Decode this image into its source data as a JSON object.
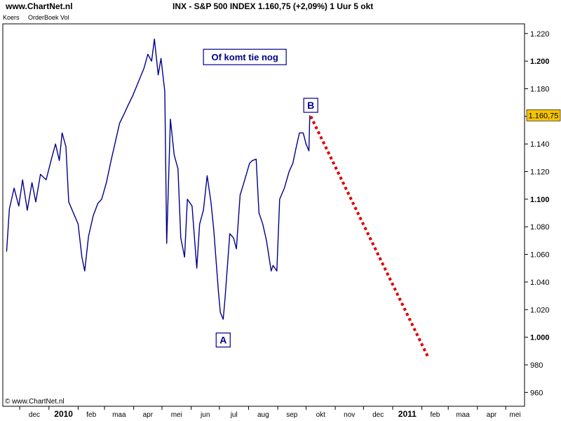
{
  "header": {
    "site": "www.ChartNet.nl",
    "title": "INX - S&P 500 INDEX   1.160,75 (+2,09%)    1 Uur  5 okt"
  },
  "tabs": [
    "Koers",
    "OrderBoek Vol"
  ],
  "watermark": "© www.ChartNet.nl",
  "colors": {
    "price_line": "#00008b",
    "projection": "#dd0000",
    "last_price_bg": "#f5c400",
    "label_border": "#00008b"
  },
  "chart_data": {
    "type": "line",
    "title": "",
    "xlabel": "",
    "ylabel": "",
    "x_tick_labels": [
      "dec",
      "2010",
      "feb",
      "maa",
      "apr",
      "mei",
      "jun",
      "jul",
      "aug",
      "sep",
      "okt",
      "nov",
      "dec",
      "2011",
      "feb",
      "maa",
      "apr",
      "mei"
    ],
    "x_bold_ticks": [
      "2010",
      "2011"
    ],
    "y_tick_labels": [
      "1.220",
      "1.200",
      "1.180",
      "1.160",
      "1.140",
      "1.120",
      "1.100",
      "1.080",
      "1.060",
      "1.040",
      "1.020",
      "1.000",
      "980",
      "960"
    ],
    "y_bold_ticks": [
      "1.200",
      "1.100",
      "1.000"
    ],
    "ylim": [
      950,
      1227
    ],
    "grid": false,
    "last_price_label": "1.160,75",
    "series": [
      {
        "role": "price",
        "points": [
          [
            "2009-11-17",
            1062
          ],
          [
            "2009-11-20",
            1093
          ],
          [
            "2009-11-25",
            1108
          ],
          [
            "2009-11-30",
            1095
          ],
          [
            "2009-12-04",
            1114
          ],
          [
            "2009-12-09",
            1092
          ],
          [
            "2009-12-14",
            1112
          ],
          [
            "2009-12-18",
            1098
          ],
          [
            "2009-12-23",
            1118
          ],
          [
            "2009-12-29",
            1114
          ],
          [
            "2010-01-04",
            1130
          ],
          [
            "2010-01-08",
            1140
          ],
          [
            "2010-01-12",
            1128
          ],
          [
            "2010-01-15",
            1148
          ],
          [
            "2010-01-19",
            1138
          ],
          [
            "2010-01-22",
            1098
          ],
          [
            "2010-01-27",
            1090
          ],
          [
            "2010-02-01",
            1082
          ],
          [
            "2010-02-05",
            1058
          ],
          [
            "2010-02-08",
            1048
          ],
          [
            "2010-02-12",
            1073
          ],
          [
            "2010-02-17",
            1088
          ],
          [
            "2010-02-22",
            1097
          ],
          [
            "2010-02-26",
            1100
          ],
          [
            "2010-03-03",
            1112
          ],
          [
            "2010-03-08",
            1128
          ],
          [
            "2010-03-12",
            1140
          ],
          [
            "2010-03-17",
            1155
          ],
          [
            "2010-03-22",
            1162
          ],
          [
            "2010-03-26",
            1168
          ],
          [
            "2010-03-31",
            1175
          ],
          [
            "2010-04-06",
            1185
          ],
          [
            "2010-04-12",
            1195
          ],
          [
            "2010-04-16",
            1205
          ],
          [
            "2010-04-20",
            1200
          ],
          [
            "2010-04-23",
            1216
          ],
          [
            "2010-04-27",
            1190
          ],
          [
            "2010-04-30",
            1202
          ],
          [
            "2010-05-04",
            1178
          ],
          [
            "2010-05-06",
            1068
          ],
          [
            "2010-05-10",
            1158
          ],
          [
            "2010-05-14",
            1132
          ],
          [
            "2010-05-18",
            1122
          ],
          [
            "2010-05-21",
            1072
          ],
          [
            "2010-05-25",
            1058
          ],
          [
            "2010-05-28",
            1100
          ],
          [
            "2010-06-02",
            1095
          ],
          [
            "2010-06-07",
            1050
          ],
          [
            "2010-06-10",
            1082
          ],
          [
            "2010-06-14",
            1092
          ],
          [
            "2010-06-18",
            1117
          ],
          [
            "2010-06-22",
            1098
          ],
          [
            "2010-06-25",
            1078
          ],
          [
            "2010-06-30",
            1033
          ],
          [
            "2010-07-02",
            1018
          ],
          [
            "2010-07-05",
            1013
          ],
          [
            "2010-07-07",
            1028
          ],
          [
            "2010-07-12",
            1075
          ],
          [
            "2010-07-16",
            1072
          ],
          [
            "2010-07-19",
            1064
          ],
          [
            "2010-07-23",
            1103
          ],
          [
            "2010-07-27",
            1112
          ],
          [
            "2010-08-02",
            1126
          ],
          [
            "2010-08-05",
            1128
          ],
          [
            "2010-08-09",
            1129
          ],
          [
            "2010-08-12",
            1090
          ],
          [
            "2010-08-16",
            1082
          ],
          [
            "2010-08-20",
            1070
          ],
          [
            "2010-08-25",
            1048
          ],
          [
            "2010-08-27",
            1052
          ],
          [
            "2010-08-31",
            1048
          ],
          [
            "2010-09-03",
            1100
          ],
          [
            "2010-09-08",
            1108
          ],
          [
            "2010-09-13",
            1120
          ],
          [
            "2010-09-17",
            1126
          ],
          [
            "2010-09-21",
            1139
          ],
          [
            "2010-09-24",
            1148
          ],
          [
            "2010-09-28",
            1148
          ],
          [
            "2010-10-01",
            1140
          ],
          [
            "2010-10-04",
            1135
          ],
          [
            "2010-10-05",
            1160.75
          ]
        ]
      },
      {
        "role": "projection",
        "points": [
          [
            "2010-10-06",
            1160
          ],
          [
            "2011-02-08",
            985
          ]
        ]
      }
    ]
  },
  "annotations": [
    {
      "text": "Of komt tie nog",
      "x": "2010-07-28",
      "y": 1203,
      "style": "title"
    },
    {
      "text": "B",
      "x": "2010-10-06",
      "y": 1168,
      "style": "box"
    },
    {
      "text": "A",
      "x": "2010-07-05",
      "y": 998,
      "style": "box"
    }
  ]
}
